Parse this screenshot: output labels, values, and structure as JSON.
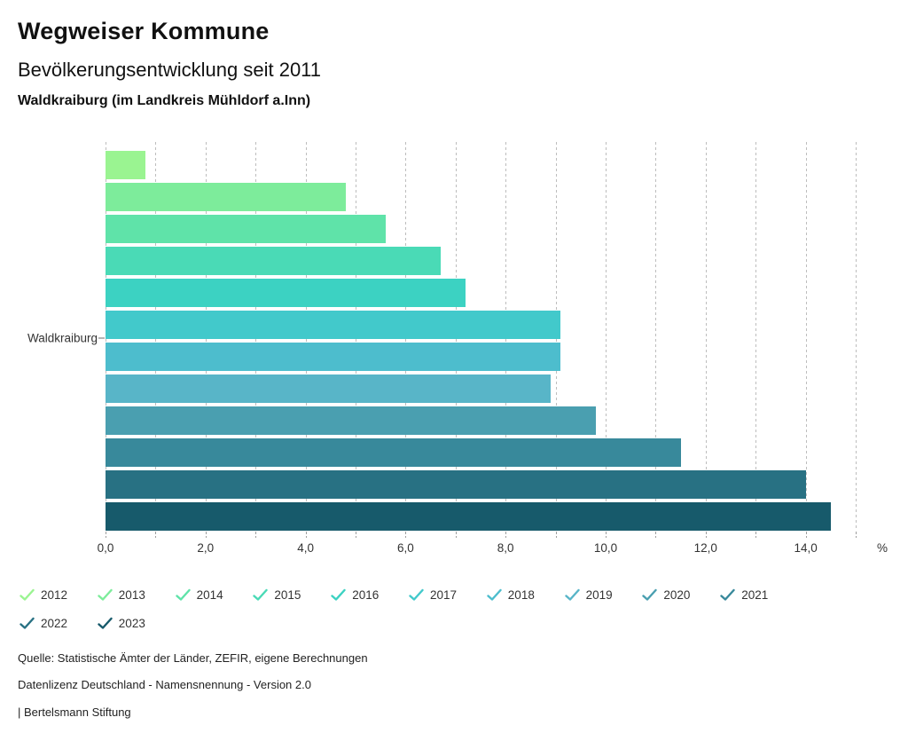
{
  "header": {
    "title": "Wegweiser Kommune",
    "subtitle": "Bevölkerungsentwicklung seit 2011",
    "region_line": "Waldkraiburg (im Landkreis Mühldorf a.Inn)"
  },
  "chart_data": {
    "type": "bar",
    "orientation": "horizontal",
    "group_label": "Waldkraiburg",
    "categories": [
      "2012",
      "2013",
      "2014",
      "2015",
      "2016",
      "2017",
      "2018",
      "2019",
      "2020",
      "2021",
      "2022",
      "2023"
    ],
    "values": [
      0.8,
      4.8,
      5.6,
      6.7,
      7.2,
      9.1,
      9.1,
      8.9,
      9.8,
      11.5,
      14.0,
      14.5
    ],
    "colors": [
      "#9AF491",
      "#7DEC9B",
      "#5FE3A9",
      "#4ADAB6",
      "#3CD2C2",
      "#42C9CB",
      "#4DBDCD",
      "#58B5C8",
      "#4A9FB0",
      "#38899B",
      "#287183",
      "#175A6B"
    ],
    "xlabel": "%",
    "x_tick_labels": [
      "0,0",
      "2,0",
      "4,0",
      "6,0",
      "8,0",
      "10,0",
      "12,0",
      "14,0"
    ],
    "x_tick_values": [
      0,
      2,
      4,
      6,
      8,
      10,
      12,
      14
    ],
    "xlim": [
      0,
      15
    ],
    "grid": "vertical-dashed",
    "gridline_color": "#bdbdbd",
    "legend_position": "bottom"
  },
  "legend": {
    "check_glyph": "check-mark",
    "items_per_row": 10
  },
  "footer": {
    "source_line": "Quelle: Statistische Ämter der Länder, ZEFIR, eigene Berechnungen",
    "license_line": "Datenlizenz Deutschland - Namensnennung - Version 2.0",
    "brand_line": "| Bertelsmann Stiftung"
  }
}
